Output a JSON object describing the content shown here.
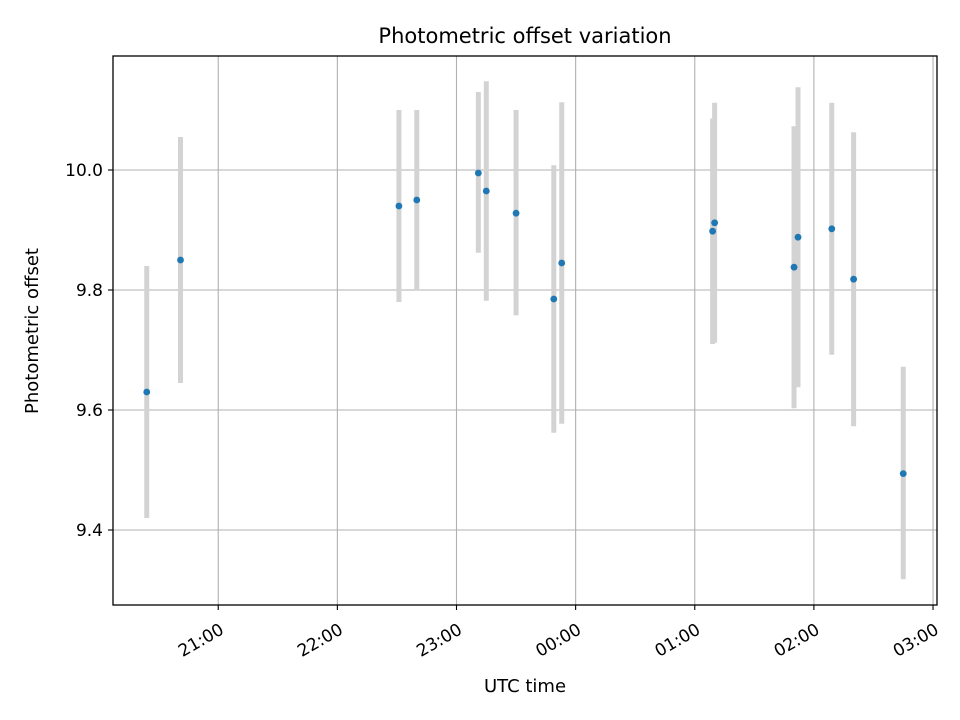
{
  "chart_data": {
    "type": "scatter",
    "title": "Photometric offset variation",
    "xlabel": "UTC time",
    "ylabel": "Photometric offset",
    "x_unit": "UTC clock time (HH:MM); times after midnight roll into the next day",
    "xlim": [
      "20:07",
      "03:02"
    ],
    "ylim": [
      9.275,
      10.19
    ],
    "grid": true,
    "legend": "none",
    "x_ticks": [
      "21:00",
      "22:00",
      "23:00",
      "00:00",
      "01:00",
      "02:00",
      "03:00"
    ],
    "y_ticks": [
      9.4,
      9.6,
      9.8,
      10.0
    ],
    "y_tick_labels": [
      "9.4",
      "9.6",
      "9.8",
      "10.0"
    ],
    "colors": {
      "point": "#1f77b4",
      "errorbar": "#d3d3d3",
      "grid": "#b0b0b0"
    },
    "points": [
      {
        "x": "20:24",
        "y": 9.63,
        "ylo": 9.42,
        "yhi": 9.84
      },
      {
        "x": "20:41",
        "y": 9.85,
        "ylo": 9.645,
        "yhi": 10.055
      },
      {
        "x": "22:31",
        "y": 9.94,
        "ylo": 9.78,
        "yhi": 10.1
      },
      {
        "x": "22:40",
        "y": 9.95,
        "ylo": 9.8,
        "yhi": 10.1
      },
      {
        "x": "23:11",
        "y": 9.995,
        "ylo": 9.862,
        "yhi": 10.13
      },
      {
        "x": "23:15",
        "y": 9.965,
        "ylo": 9.782,
        "yhi": 10.148
      },
      {
        "x": "23:30",
        "y": 9.928,
        "ylo": 9.758,
        "yhi": 10.1
      },
      {
        "x": "23:49",
        "y": 9.785,
        "ylo": 9.562,
        "yhi": 10.008
      },
      {
        "x": "23:53",
        "y": 9.845,
        "ylo": 9.577,
        "yhi": 10.113
      },
      {
        "x": "01:09",
        "y": 9.898,
        "ylo": 9.71,
        "yhi": 10.086
      },
      {
        "x": "01:10",
        "y": 9.912,
        "ylo": 9.712,
        "yhi": 10.112
      },
      {
        "x": "01:50",
        "y": 9.838,
        "ylo": 9.603,
        "yhi": 10.073
      },
      {
        "x": "01:52",
        "y": 9.888,
        "ylo": 9.638,
        "yhi": 10.138
      },
      {
        "x": "02:09",
        "y": 9.902,
        "ylo": 9.692,
        "yhi": 10.112
      },
      {
        "x": "02:20",
        "y": 9.818,
        "ylo": 9.573,
        "yhi": 10.063
      },
      {
        "x": "02:45",
        "y": 9.494,
        "ylo": 9.318,
        "yhi": 9.672
      }
    ]
  }
}
